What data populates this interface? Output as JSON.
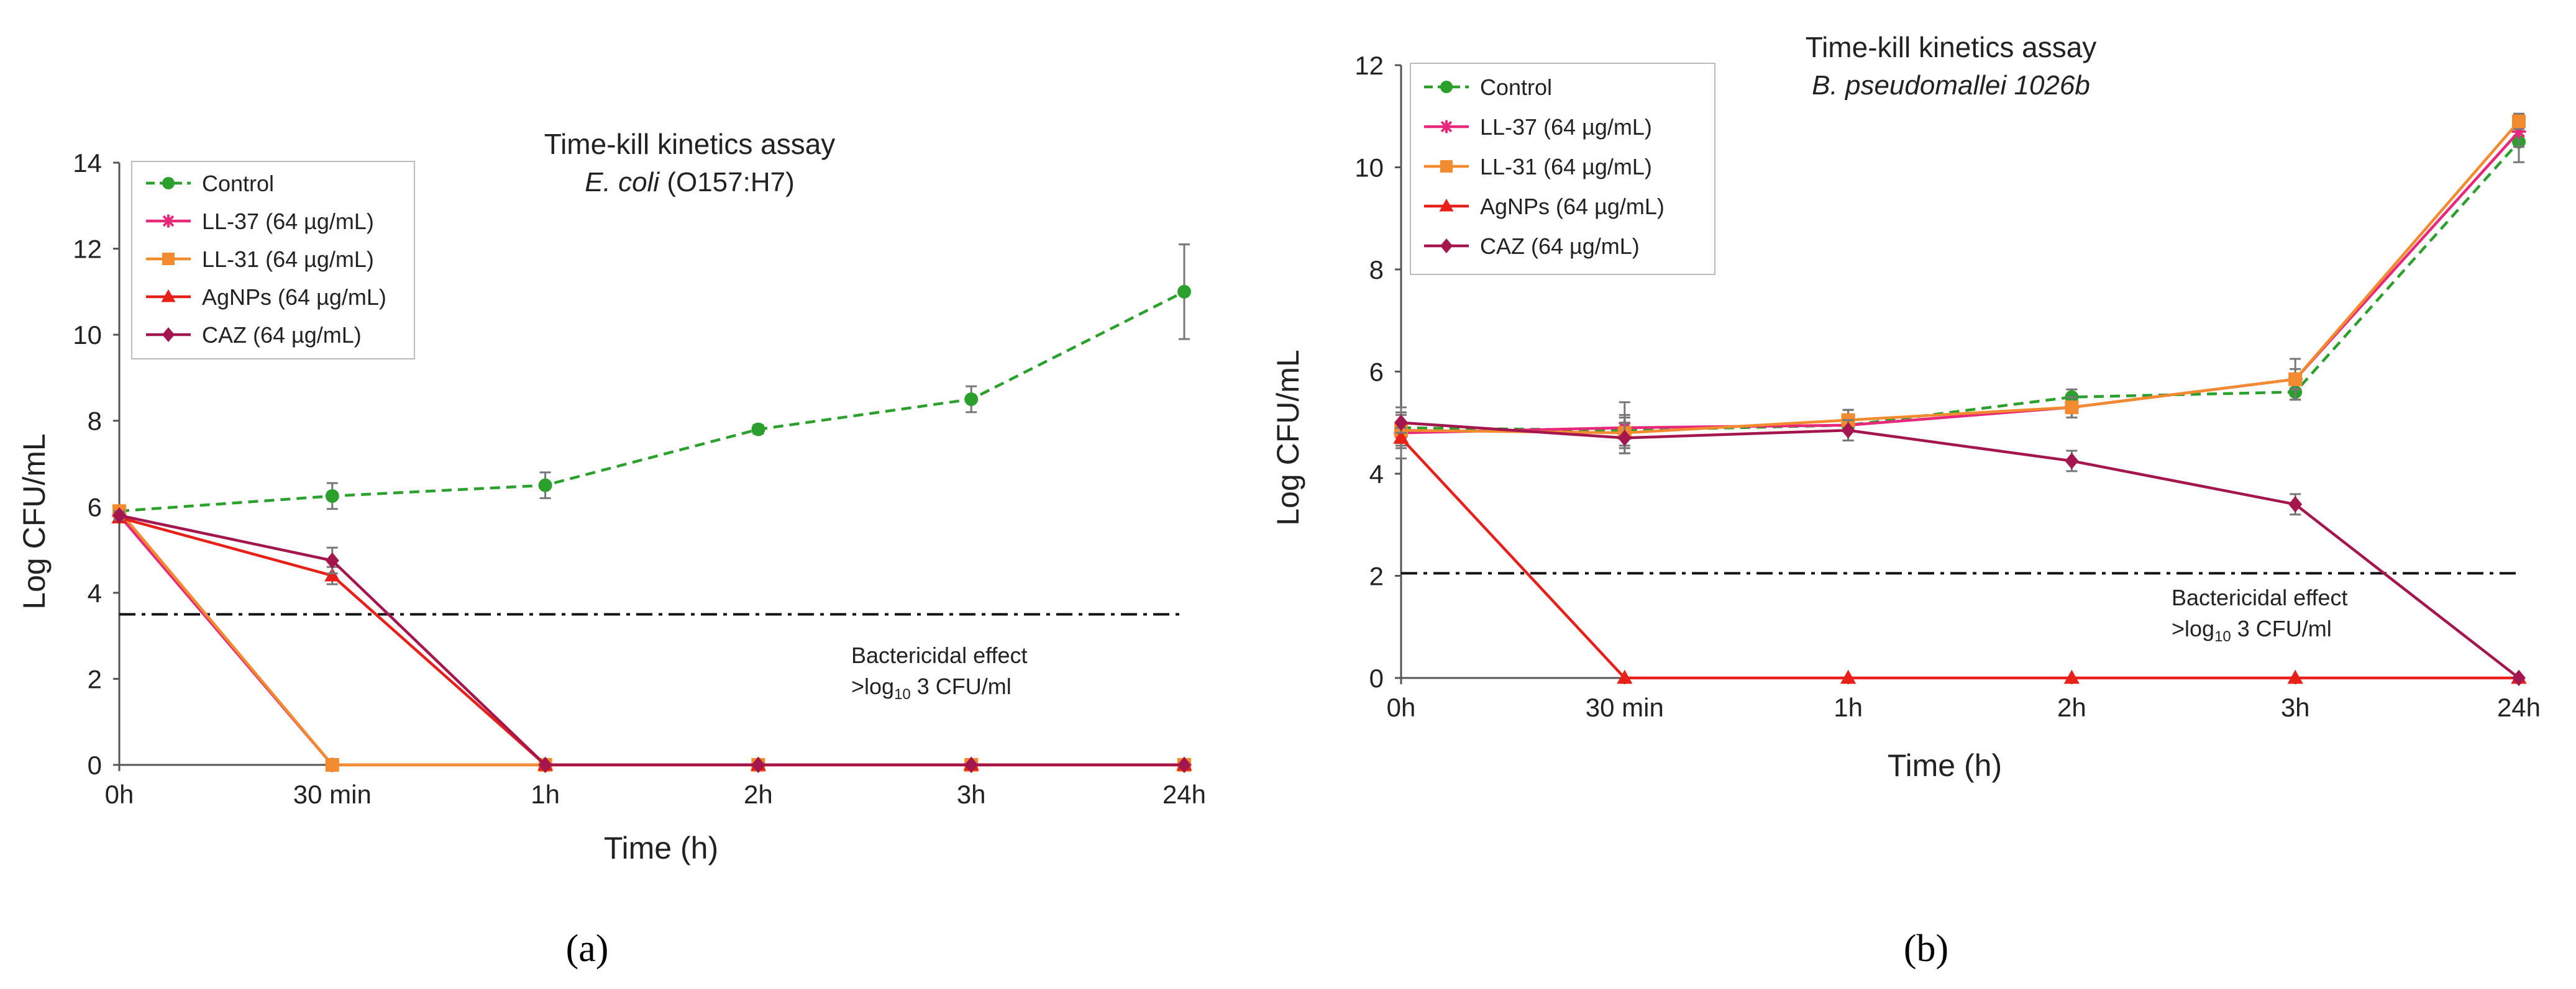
{
  "figure_labels": [
    "(a)",
    "(b)"
  ],
  "legend": {
    "entries": [
      {
        "name": "Control",
        "color": "#2ca02c",
        "dash": true,
        "marker": "circle"
      },
      {
        "name": "LL-37 (64 µg/mL)",
        "color": "#e8287a",
        "dash": false,
        "marker": "star"
      },
      {
        "name": "LL-31 (64 µg/mL)",
        "color": "#f28a30",
        "dash": false,
        "marker": "square"
      },
      {
        "name": "AgNPs (64 µg/mL)",
        "color": "#e8201a",
        "dash": false,
        "marker": "triangle"
      },
      {
        "name": "CAZ (64 µg/mL)",
        "color": "#a3174e",
        "dash": false,
        "marker": "diamond"
      }
    ]
  },
  "chart_data": [
    {
      "type": "line",
      "title": "Time-kill kinetics assay",
      "subtitle_italic": "E. coli",
      "subtitle_rest": " (O157:H7)",
      "xlabel": "Time (h)",
      "ylabel": "Log CFU/mL",
      "categories": [
        "0h",
        "30 min",
        "1h",
        "2h",
        "3h",
        "24h"
      ],
      "ylim": [
        0,
        14
      ],
      "yticks": [
        0,
        2,
        4,
        6,
        8,
        10,
        12,
        14
      ],
      "threshold": 3.5,
      "annotation_line1": "Bactericidal effect",
      "annotation_prefix": ">log",
      "annotation_sub": "10",
      "annotation_suffix": " 3 CFU/ml",
      "series": [
        {
          "name": "Control",
          "values": [
            5.9,
            6.25,
            6.5,
            7.8,
            8.5,
            11.0
          ],
          "errors": [
            0.1,
            0.3,
            0.3,
            0.1,
            0.3,
            1.1
          ]
        },
        {
          "name": "LL-37 (64 µg/mL)",
          "values": [
            5.8,
            0,
            0,
            0,
            0,
            0
          ],
          "errors": [
            0.1,
            0,
            0,
            0,
            0,
            0
          ]
        },
        {
          "name": "LL-31 (64 µg/mL)",
          "values": [
            5.9,
            0,
            0,
            0,
            0,
            0
          ],
          "errors": [
            0.1,
            0,
            0,
            0,
            0,
            0
          ]
        },
        {
          "name": "AgNPs (64 µg/mL)",
          "values": [
            5.75,
            4.4,
            0,
            0,
            0,
            0
          ],
          "errors": [
            0.1,
            0.2,
            0,
            0,
            0,
            0
          ]
        },
        {
          "name": "CAZ (64 µg/mL)",
          "values": [
            5.8,
            4.75,
            0,
            0,
            0,
            0
          ],
          "errors": [
            0.1,
            0.3,
            0,
            0,
            0,
            0
          ]
        }
      ]
    },
    {
      "type": "line",
      "title": "Time-kill kinetics assay",
      "subtitle_italic": "B. pseudomallei 1026b",
      "subtitle_rest": "",
      "xlabel": "Time (h)",
      "ylabel": "Log CFU/mL",
      "categories": [
        "0h",
        "30 min",
        "1h",
        "2h",
        "3h",
        "24h"
      ],
      "ylim": [
        0,
        12
      ],
      "yticks": [
        0,
        2,
        4,
        6,
        8,
        10,
        12
      ],
      "threshold": 2.05,
      "annotation_line1": "Bactericidal effect",
      "annotation_prefix": ">log",
      "annotation_sub": "10",
      "annotation_suffix": " 3 CFU/ml",
      "series": [
        {
          "name": "Control",
          "values": [
            4.9,
            4.85,
            4.95,
            5.5,
            5.6,
            10.5
          ],
          "errors": [
            0.3,
            0.3,
            0.3,
            0.15,
            0.15,
            0.4
          ]
        },
        {
          "name": "LL-37 (64 µg/mL)",
          "values": [
            4.8,
            4.9,
            4.95,
            5.3,
            5.85,
            10.7
          ],
          "errors": [
            0.5,
            0.5,
            0.3,
            0.2,
            0.4,
            0.3
          ]
        },
        {
          "name": "LL-31 (64 µg/mL)",
          "values": [
            4.85,
            4.8,
            5.05,
            5.3,
            5.85,
            10.9
          ],
          "errors": [
            0.3,
            0.3,
            0.2,
            0.2,
            0.2,
            0.15
          ]
        },
        {
          "name": "AgNPs (64 µg/mL)",
          "values": [
            4.7,
            0,
            0,
            0,
            0,
            0
          ],
          "errors": [
            0.2,
            0,
            0,
            0,
            0,
            0
          ]
        },
        {
          "name": "CAZ (64 µg/mL)",
          "values": [
            5.0,
            4.7,
            4.85,
            4.25,
            3.4,
            0
          ],
          "errors": [
            0.2,
            0.3,
            0.2,
            0.2,
            0.2,
            0
          ]
        }
      ]
    }
  ]
}
